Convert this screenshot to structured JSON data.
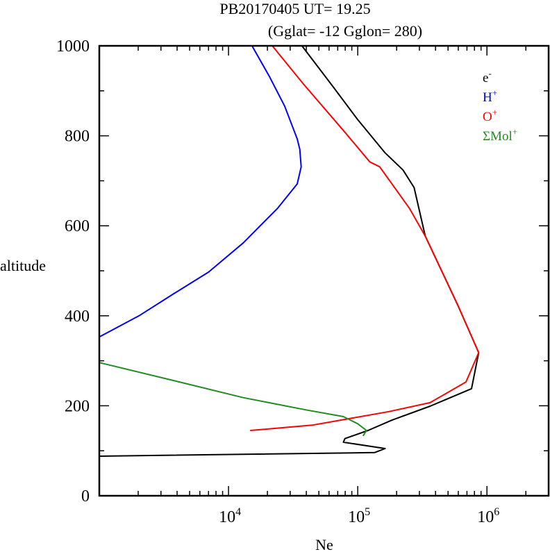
{
  "chart_data": {
    "type": "line",
    "title": "PB20170405   UT=  19.25",
    "subtitle": "(Gglat= -12   Gglon=  280)",
    "xlabel": "Ne",
    "ylabel": "altitude",
    "xscale": "log",
    "xlim": [
      1000,
      3000000
    ],
    "ylim": [
      0,
      1000
    ],
    "xticks": [
      {
        "value": 10000,
        "base": "10",
        "exp": "4"
      },
      {
        "value": 100000,
        "base": "10",
        "exp": "5"
      },
      {
        "value": 1000000,
        "base": "10",
        "exp": "6"
      }
    ],
    "yticks": [
      "0",
      "200",
      "400",
      "600",
      "800",
      "1000"
    ],
    "legend_position": "top-right",
    "series": [
      {
        "name": "e-",
        "label_base": "e",
        "label_sup": "-",
        "color": "#000000",
        "points": [
          [
            1000,
            88
          ],
          [
            135000,
            96
          ],
          [
            163000,
            105
          ],
          [
            77500,
            119
          ],
          [
            79500,
            127
          ],
          [
            120000,
            145
          ],
          [
            184000,
            168
          ],
          [
            363000,
            199
          ],
          [
            760000,
            238
          ],
          [
            863000,
            318
          ],
          [
            596000,
            423
          ],
          [
            333000,
            577
          ],
          [
            273000,
            685
          ],
          [
            224000,
            724
          ],
          [
            163000,
            762
          ],
          [
            100000,
            836
          ],
          [
            64500,
            909
          ],
          [
            37000,
            1000
          ]
        ]
      },
      {
        "name": "H+",
        "label_base": "H",
        "label_sup": "+",
        "color": "#0000ff",
        "points": [
          [
            1000,
            353
          ],
          [
            2030,
            400
          ],
          [
            3770,
            449
          ],
          [
            7000,
            497
          ],
          [
            13000,
            562
          ],
          [
            24000,
            639
          ],
          [
            34000,
            693
          ],
          [
            36500,
            731
          ],
          [
            35600,
            770
          ],
          [
            34000,
            793
          ],
          [
            27200,
            866
          ],
          [
            20700,
            932
          ],
          [
            15200,
            1000
          ]
        ]
      },
      {
        "name": "O+",
        "label_base": "O",
        "label_sup": "+",
        "color": "#ff0000",
        "points": [
          [
            14700,
            145
          ],
          [
            44500,
            157
          ],
          [
            174000,
            187
          ],
          [
            363000,
            207
          ],
          [
            688000,
            253
          ],
          [
            863000,
            318
          ],
          [
            596000,
            423
          ],
          [
            333000,
            577
          ],
          [
            251000,
            639
          ],
          [
            148000,
            731
          ],
          [
            124000,
            742
          ],
          [
            79000,
            809
          ],
          [
            37500,
            917
          ],
          [
            21800,
            1000
          ]
        ]
      },
      {
        "name": "ΣMol+",
        "label_base": "ΣMol",
        "label_sup": "+",
        "color": "#228b22",
        "points": [
          [
            110000,
            133
          ],
          [
            117000,
            145
          ],
          [
            100000,
            160
          ],
          [
            77500,
            176
          ],
          [
            39400,
            191
          ],
          [
            13000,
            218
          ],
          [
            3770,
            256
          ],
          [
            1000,
            296
          ]
        ]
      }
    ]
  }
}
